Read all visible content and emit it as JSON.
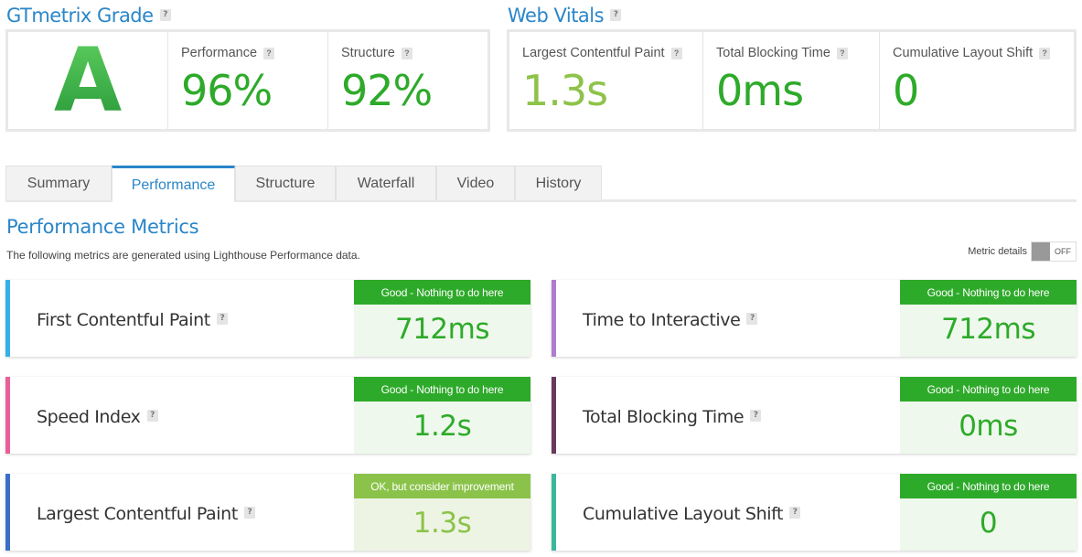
{
  "grade_section": {
    "title": "GTmetrix Grade",
    "help": "?",
    "grade": "A",
    "performance": {
      "label": "Performance",
      "value": "96%"
    },
    "structure": {
      "label": "Structure",
      "value": "92%"
    }
  },
  "vitals_section": {
    "title": "Web Vitals",
    "help": "?",
    "items": [
      {
        "label": "Largest Contentful Paint",
        "value": "1.3s"
      },
      {
        "label": "Total Blocking Time",
        "value": "0ms"
      },
      {
        "label": "Cumulative Layout Shift",
        "value": "0"
      }
    ]
  },
  "tabs": [
    {
      "label": "Summary"
    },
    {
      "label": "Performance"
    },
    {
      "label": "Structure"
    },
    {
      "label": "Waterfall"
    },
    {
      "label": "Video"
    },
    {
      "label": "History"
    }
  ],
  "active_tab": "Performance",
  "metrics": {
    "title": "Performance Metrics",
    "description": "The following metrics are generated using Lighthouse Performance data.",
    "details_label": "Metric details",
    "details_state": "OFF",
    "cards": [
      {
        "label": "First Contentful Paint",
        "status": "Good - Nothing to do here",
        "value": "712ms",
        "accent": "#35b0e8"
      },
      {
        "label": "Time to Interactive",
        "status": "Good - Nothing to do here",
        "value": "712ms",
        "accent": "#b07ccf"
      },
      {
        "label": "Speed Index",
        "status": "Good - Nothing to do here",
        "value": "1.2s",
        "accent": "#e8609a"
      },
      {
        "label": "Total Blocking Time",
        "status": "Good - Nothing to do here",
        "value": "0ms",
        "accent": "#6a3a5c"
      },
      {
        "label": "Largest Contentful Paint",
        "status": "OK, but consider improvement",
        "value": "1.3s",
        "accent": "#3a6fc9"
      },
      {
        "label": "Cumulative Layout Shift",
        "status": "Good - Nothing to do here",
        "value": "0",
        "accent": "#3ab89a"
      }
    ]
  },
  "colors": {
    "brand_blue": "#2a86c9",
    "good_green": "#2eaa2a",
    "ok_green": "#8bc34a"
  }
}
